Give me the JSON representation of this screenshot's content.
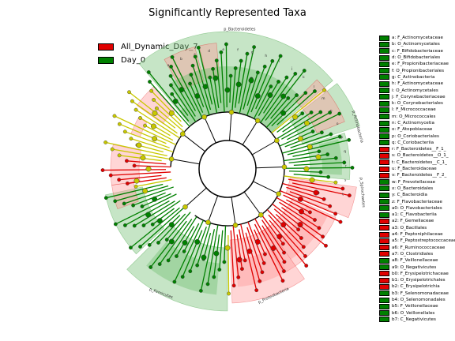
{
  "title": "Significantly Represented Taxa",
  "colors": {
    "group_a": "#e00000",
    "group_b": "#008000",
    "neutral": "#c8c800"
  },
  "groups": [
    {
      "label": "All_Dynamic_Day_7",
      "color": "#e00000"
    },
    {
      "label": "Day_0",
      "color": "#008000"
    }
  ],
  "taxa_legend": [
    {
      "label": "a: F_Actinomycetaceae",
      "color": "#008000"
    },
    {
      "label": "b: O_Actinomycetales",
      "color": "#008000"
    },
    {
      "label": "c: F_Bifidobacteriaceae",
      "color": "#008000"
    },
    {
      "label": "d: O_Bifidobacteriales",
      "color": "#008000"
    },
    {
      "label": "e: F_Propionibacteriaceae",
      "color": "#008000"
    },
    {
      "label": "f: O_Propionibacteriales",
      "color": "#008000"
    },
    {
      "label": "g: C_Actinobacteria",
      "color": "#008000"
    },
    {
      "label": "h: F_Actinomycetaceae",
      "color": "#008000"
    },
    {
      "label": "i: O_Actinomycetales",
      "color": "#008000"
    },
    {
      "label": "j: F_Corynebacteriaceae",
      "color": "#008000"
    },
    {
      "label": "k: O_Corynebacteriales",
      "color": "#008000"
    },
    {
      "label": "l: F_Micrococcaceae",
      "color": "#008000"
    },
    {
      "label": "m: O_Micrococcales",
      "color": "#008000"
    },
    {
      "label": "n: C_Actinomycetia",
      "color": "#008000"
    },
    {
      "label": "o: F_Atopobiaceae",
      "color": "#008000"
    },
    {
      "label": "p: O_Coriobacteriales",
      "color": "#008000"
    },
    {
      "label": "q: C_Coriobacteriia",
      "color": "#008000"
    },
    {
      "label": "r: F_Bacteroidetes__F_1_",
      "color": "#e00000"
    },
    {
      "label": "s: O_Bacteroidetes__O_1_",
      "color": "#e00000"
    },
    {
      "label": "t: C_Bacteroidetes__C_1_",
      "color": "#e00000"
    },
    {
      "label": "u: F_Bacteroidaceae",
      "color": "#e00000"
    },
    {
      "label": "v: F_Bacteroidetes__F_2_",
      "color": "#e00000"
    },
    {
      "label": "w: F_Prevotellaceae",
      "color": "#008000"
    },
    {
      "label": "x: O_Bacteroidales",
      "color": "#008000"
    },
    {
      "label": "y: C_Bacteroidia",
      "color": "#008000"
    },
    {
      "label": "z: F_Flavobacteriaceae",
      "color": "#008000"
    },
    {
      "label": "a0: O_Flavobacteriales",
      "color": "#008000"
    },
    {
      "label": "a1: C_Flavobacteriia",
      "color": "#008000"
    },
    {
      "label": "a2: F_Gemellaceae",
      "color": "#e00000"
    },
    {
      "label": "a3: O_Bacillales",
      "color": "#e00000"
    },
    {
      "label": "a4: F_Peptoniphilaceae",
      "color": "#e00000"
    },
    {
      "label": "a5: F_Peptostreptococcaceae",
      "color": "#e00000"
    },
    {
      "label": "a6: F_Ruminococcaceae",
      "color": "#e00000"
    },
    {
      "label": "a7: O_Clostridiales",
      "color": "#e00000"
    },
    {
      "label": "a8: F_Veillonellaceae",
      "color": "#008000"
    },
    {
      "label": "a9: O_Negativicutes",
      "color": "#008000"
    },
    {
      "label": "b0: F_Erysipelotrichaceae",
      "color": "#e00000"
    },
    {
      "label": "b1: O_Erysipelotrichales",
      "color": "#e00000"
    },
    {
      "label": "b2: C_Erysipelotrichia",
      "color": "#e00000"
    },
    {
      "label": "b3: F_Selenomonadaceae",
      "color": "#008000"
    },
    {
      "label": "b4: O_Selenomonadales",
      "color": "#008000"
    },
    {
      "label": "b5: F_Veillonellaceae",
      "color": "#008000"
    },
    {
      "label": "b6: O_Veillonellales",
      "color": "#008000"
    },
    {
      "label": "b7: C_Negativicutes",
      "color": "#008000"
    }
  ],
  "sectors": [
    {
      "label": "p_Bacteroidetes",
      "color": "#008000"
    },
    {
      "label": "p_Actinobacteria",
      "color": "#008000"
    },
    {
      "label": "p_Spirochaetes",
      "color": "#e00000"
    },
    {
      "label": "p_Proteobacteria",
      "color": "#e00000"
    },
    {
      "label": "p_Firmicutes",
      "color": "#008000"
    }
  ]
}
